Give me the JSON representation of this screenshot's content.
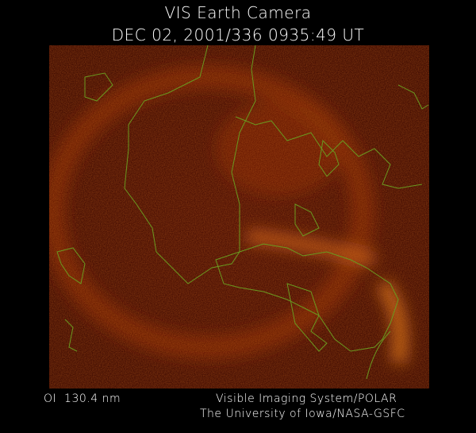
{
  "header": {
    "title": "VIS Earth Camera",
    "timestamp": "DEC 02, 2001/336 0935:49 UT"
  },
  "footer": {
    "filter": "OI  130.4 nm",
    "instrument": "Visible Imaging System/POLAR",
    "institution": "The University of Iowa/NASA-GSFC"
  }
}
